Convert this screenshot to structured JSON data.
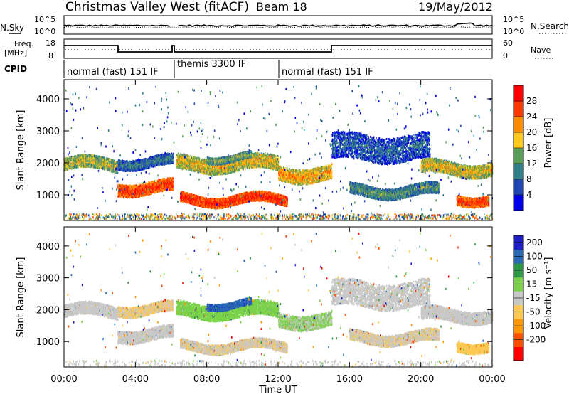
{
  "header": {
    "station": "Christmas Valley West (fitACF)",
    "beam": "Beam 18",
    "date": "19/May/2012"
  },
  "top_panels": {
    "nsky_label": "N.Sky",
    "nsearch_label": "N.Search",
    "noise_ticks": [
      "10^5",
      "10^0"
    ],
    "freq_label_1": "Freq.",
    "freq_label_2": "[MHz]",
    "freq_ticks": [
      "18",
      "8"
    ],
    "nave_label": "Nave",
    "nave_ticks": [
      "60",
      "0"
    ],
    "cpid_label": "CPID",
    "cpid_segments": [
      {
        "label": "normal (fast) 151 IF",
        "start_h": 0,
        "end_h": 6.2
      },
      {
        "label": "themis 3300 IF",
        "start_h": 6.2,
        "end_h": 12.0
      },
      {
        "label": "normal (fast) 151 IF",
        "start_h": 12.0,
        "end_h": 24.0
      }
    ]
  },
  "chart_data": [
    {
      "type": "heatmap",
      "name": "power",
      "xlabel": "Time UT",
      "ylabel": "Slant Range [km]",
      "x_ticks": [
        "00:00",
        "04:00",
        "08:00",
        "12:00",
        "16:00",
        "20:00",
        "00:00"
      ],
      "xlim_hours": [
        0,
        24
      ],
      "ylim": [
        200,
        4600
      ],
      "y_ticks": [
        1000,
        2000,
        3000,
        4000
      ],
      "colorbar": {
        "label": "Power [dB]",
        "ticks": [
          "28",
          "24",
          "20",
          "16",
          "12",
          "8",
          "4"
        ],
        "range": [
          0,
          30
        ],
        "colors": [
          "#0000e6",
          "#1e46b4",
          "#32828c",
          "#5aa05a",
          "#ffc81e",
          "#ff8c00",
          "#ff3c00",
          "#ff0000"
        ]
      }
    },
    {
      "type": "heatmap",
      "name": "velocity",
      "xlabel": "Time UT",
      "ylabel": "Slant Range [km]",
      "x_ticks": [
        "00:00",
        "04:00",
        "08:00",
        "12:00",
        "16:00",
        "20:00",
        "00:00"
      ],
      "xlim_hours": [
        0,
        24
      ],
      "ylim": [
        200,
        4600
      ],
      "y_ticks": [
        1000,
        2000,
        3000,
        4000
      ],
      "colorbar": {
        "label": "Velocity [m s⁻¹]",
        "ticks": [
          "200",
          "100",
          "50",
          "15",
          "-15",
          "-50",
          "-100",
          "-200"
        ],
        "range": [
          -250,
          250
        ],
        "colors": [
          "#ff0000",
          "#ff5000",
          "#ff9600",
          "#ffc850",
          "#c8c8c8",
          "#7ad24a",
          "#2e9a46",
          "#2a6ab4",
          "#1e1ec8"
        ]
      }
    }
  ]
}
